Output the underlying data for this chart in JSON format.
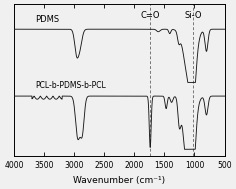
{
  "title": "",
  "xlabel": "Wavenumber (cm⁻¹)",
  "ylabel": "",
  "xlim": [
    4000,
    500
  ],
  "label_pdms": "PDMS",
  "label_pcl": "PCL-b-PDMS-b-PCL",
  "dashed_lines": [
    1735,
    1020
  ],
  "dashed_labels": [
    "C=O",
    "Si-O"
  ],
  "xticks": [
    4000,
    3500,
    3000,
    2500,
    2000,
    1500,
    1000,
    500
  ],
  "background_color": "#f0f0f0",
  "line_color": "#1a1a1a",
  "dashed_color": "#777777",
  "fontsize_label": 6.5,
  "fontsize_annot": 6.0,
  "fontsize_tick": 5.5
}
